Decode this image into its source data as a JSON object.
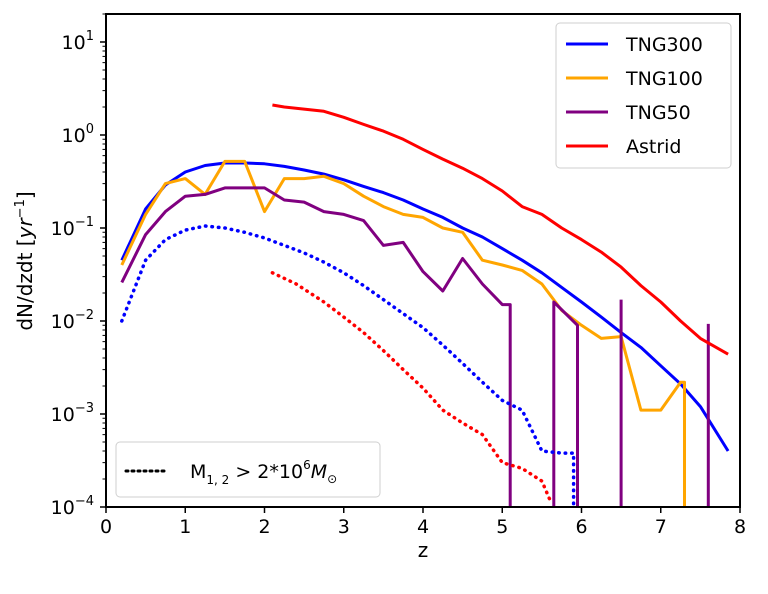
{
  "chart_data": {
    "type": "line",
    "title": "",
    "xlabel": "z",
    "ylabel_parts": [
      "dN/dzdt [",
      "yr",
      "−1",
      "]"
    ],
    "xlim": [
      0,
      8
    ],
    "ylim": [
      0.0001,
      20
    ],
    "yscale": "log",
    "x_ticks": [
      0,
      1,
      2,
      3,
      4,
      5,
      6,
      7,
      8
    ],
    "y_ticks": [
      {
        "value": 10,
        "base": "10",
        "exp": "1"
      },
      {
        "value": 1,
        "base": "10",
        "exp": "0"
      },
      {
        "value": 0.1,
        "base": "10",
        "exp": "−1"
      },
      {
        "value": 0.01,
        "base": "10",
        "exp": "−2"
      },
      {
        "value": 0.001,
        "base": "10",
        "exp": "−3"
      },
      {
        "value": 0.0001,
        "base": "10",
        "exp": "−4"
      }
    ],
    "grid": false,
    "legend_position": "upper right",
    "legend": [
      "TNG300",
      "TNG100",
      "TNG50",
      "Astrid"
    ],
    "legend2_position": "lower left",
    "legend2": {
      "label_parts": [
        "M",
        "1, 2",
        " > 2*10",
        "6",
        "M",
        "⊙"
      ]
    },
    "series": [
      {
        "name": "TNG300",
        "color": "#0000ff",
        "style": "solid",
        "x": [
          0.2,
          0.5,
          0.75,
          1.0,
          1.25,
          1.5,
          1.75,
          2.0,
          2.25,
          2.5,
          2.75,
          3.0,
          3.25,
          3.5,
          3.75,
          4.0,
          4.25,
          4.5,
          4.75,
          5.0,
          5.25,
          5.5,
          5.75,
          6.0,
          6.25,
          6.5,
          6.75,
          7.0,
          7.25,
          7.5,
          7.85
        ],
        "y": [
          0.045,
          0.16,
          0.29,
          0.4,
          0.47,
          0.5,
          0.5,
          0.49,
          0.46,
          0.42,
          0.38,
          0.33,
          0.28,
          0.24,
          0.2,
          0.16,
          0.13,
          0.1,
          0.08,
          0.06,
          0.045,
          0.033,
          0.023,
          0.016,
          0.011,
          0.0075,
          0.0052,
          0.0033,
          0.0021,
          0.0012,
          0.0004
        ]
      },
      {
        "name": "TNG100",
        "color": "#ffa500",
        "style": "solid",
        "x": [
          0.2,
          0.5,
          0.75,
          1.0,
          1.25,
          1.5,
          1.75,
          2.0,
          2.25,
          2.5,
          2.75,
          3.0,
          3.25,
          3.5,
          3.75,
          4.0,
          4.25,
          4.5,
          4.75,
          5.0,
          5.25,
          5.5,
          5.75,
          6.0,
          6.25,
          6.5,
          6.75,
          7.0,
          7.25,
          7.3,
          7.3
        ],
        "y": [
          0.04,
          0.14,
          0.3,
          0.34,
          0.23,
          0.52,
          0.52,
          0.15,
          0.34,
          0.34,
          0.36,
          0.3,
          0.22,
          0.17,
          0.14,
          0.13,
          0.1,
          0.09,
          0.045,
          0.04,
          0.035,
          0.025,
          0.013,
          0.009,
          0.0065,
          0.0068,
          0.0011,
          0.0011,
          0.0022,
          0.0022,
          0.0001
        ]
      },
      {
        "name": "TNG50",
        "color": "#800080",
        "style": "solid",
        "x": [
          0.2,
          0.5,
          0.75,
          1.0,
          1.25,
          1.5,
          1.75,
          2.0,
          2.25,
          2.5,
          2.75,
          3.0,
          3.25,
          3.5,
          3.75,
          4.0,
          4.25,
          4.5,
          4.75,
          5.0,
          5.1,
          5.1
        ],
        "y": [
          0.026,
          0.085,
          0.15,
          0.22,
          0.23,
          0.27,
          0.27,
          0.27,
          0.2,
          0.19,
          0.15,
          0.14,
          0.12,
          0.065,
          0.07,
          0.034,
          0.021,
          0.047,
          0.025,
          0.015,
          0.015,
          0.0001
        ],
        "extra_segments": [
          {
            "x": [
              5.65,
              5.65,
              5.95,
              5.95
            ],
            "y": [
              0.0001,
              0.016,
              0.009,
              0.0001
            ]
          },
          {
            "x": [
              6.5,
              6.5
            ],
            "y": [
              0.0001,
              0.017
            ]
          },
          {
            "x": [
              7.6,
              7.6
            ],
            "y": [
              0.0001,
              0.0093
            ]
          }
        ]
      },
      {
        "name": "Astrid",
        "color": "#ff0000",
        "style": "solid",
        "x": [
          2.1,
          2.25,
          2.5,
          2.75,
          3.0,
          3.25,
          3.5,
          3.75,
          4.0,
          4.25,
          4.5,
          4.75,
          5.0,
          5.25,
          5.5,
          5.75,
          6.0,
          6.25,
          6.5,
          6.75,
          7.0,
          7.25,
          7.5,
          7.85
        ],
        "y": [
          2.1,
          2.0,
          1.9,
          1.8,
          1.55,
          1.3,
          1.1,
          0.9,
          0.7,
          0.55,
          0.44,
          0.34,
          0.25,
          0.17,
          0.14,
          0.1,
          0.075,
          0.055,
          0.038,
          0.024,
          0.016,
          0.01,
          0.0065,
          0.0044
        ]
      },
      {
        "name": "TNG300 (M1,2 > 2*10^6 Msun)",
        "color": "#0000ff",
        "style": "dotted",
        "x": [
          0.2,
          0.5,
          0.75,
          1.0,
          1.25,
          1.5,
          1.75,
          2.0,
          2.25,
          2.5,
          2.75,
          3.0,
          3.25,
          3.5,
          3.75,
          4.0,
          4.25,
          4.5,
          4.75,
          5.0,
          5.25,
          5.5,
          5.75,
          5.9,
          5.9
        ],
        "y": [
          0.01,
          0.045,
          0.075,
          0.095,
          0.105,
          0.1,
          0.09,
          0.078,
          0.065,
          0.054,
          0.043,
          0.033,
          0.024,
          0.017,
          0.012,
          0.0085,
          0.0055,
          0.0035,
          0.0022,
          0.0014,
          0.0011,
          0.0004,
          0.00038,
          0.00038,
          0.0001
        ]
      },
      {
        "name": "Astrid (M1,2 > 2*10^6 Msun)",
        "color": "#ff0000",
        "style": "dotted",
        "x": [
          2.1,
          2.4,
          2.75,
          3.0,
          3.25,
          3.5,
          3.75,
          4.0,
          4.25,
          4.5,
          4.75,
          5.0,
          5.25,
          5.5,
          5.6
        ],
        "y": [
          0.033,
          0.025,
          0.016,
          0.011,
          0.0075,
          0.0048,
          0.003,
          0.0019,
          0.0011,
          0.0008,
          0.0006,
          0.0003,
          0.00026,
          0.00019,
          0.00012
        ]
      }
    ]
  }
}
